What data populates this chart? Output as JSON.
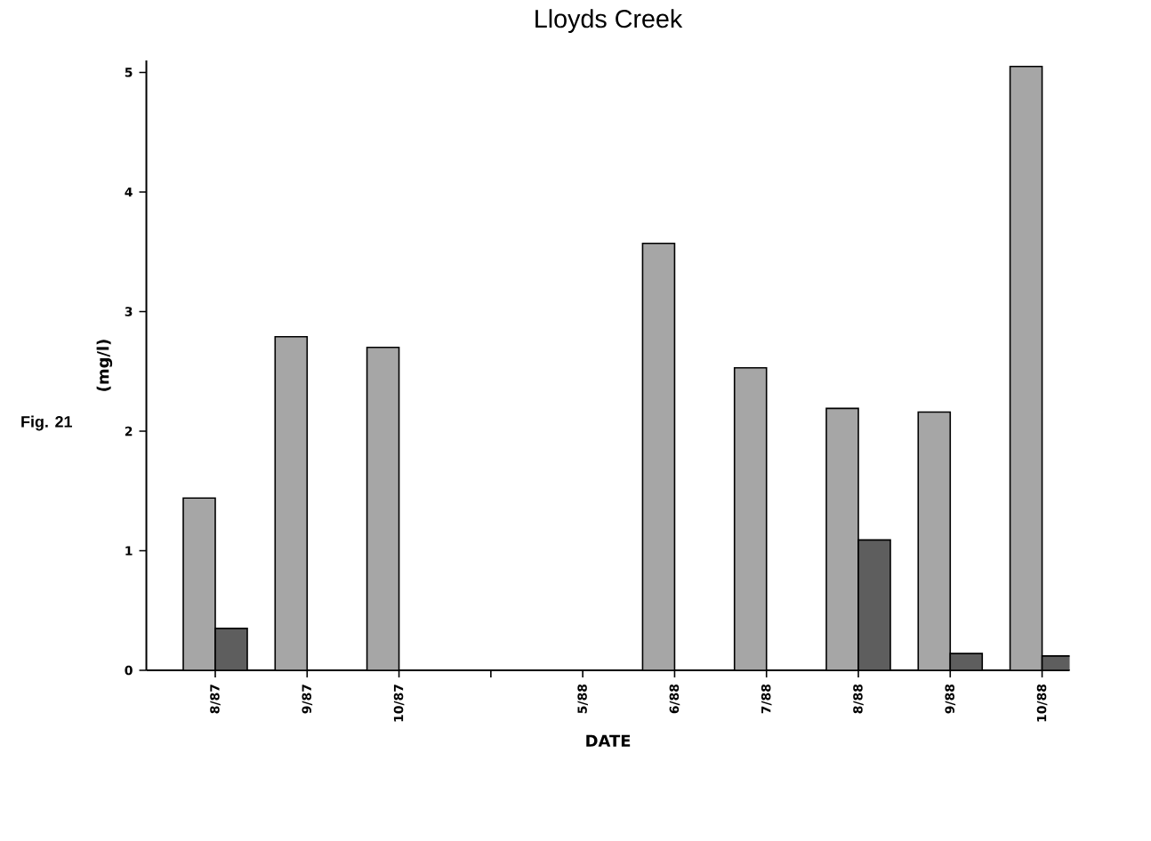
{
  "chart_data": {
    "type": "bar",
    "title": "Lloyds Creek",
    "xlabel": "DATE",
    "ylabel": "(mg/l)",
    "categories": [
      "8/87",
      "9/87",
      "10/87",
      null,
      "5/88",
      "6/88",
      "7/88",
      "8/88",
      "9/88",
      "10/88"
    ],
    "series": [
      {
        "color": "#a6a6a6",
        "values": [
          1.44,
          2.79,
          2.7,
          null,
          null,
          3.57,
          2.53,
          2.19,
          2.16,
          5.05
        ]
      },
      {
        "color": "#5e5e5e",
        "values": [
          0.35,
          null,
          null,
          null,
          null,
          null,
          null,
          1.09,
          0.14,
          0.12
        ]
      }
    ],
    "ylim": [
      0,
      5.1
    ],
    "yticks": [
      0,
      1,
      2,
      3,
      4,
      5
    ],
    "grid": false,
    "legend": false,
    "annotations": [
      "Fig. 21"
    ]
  }
}
